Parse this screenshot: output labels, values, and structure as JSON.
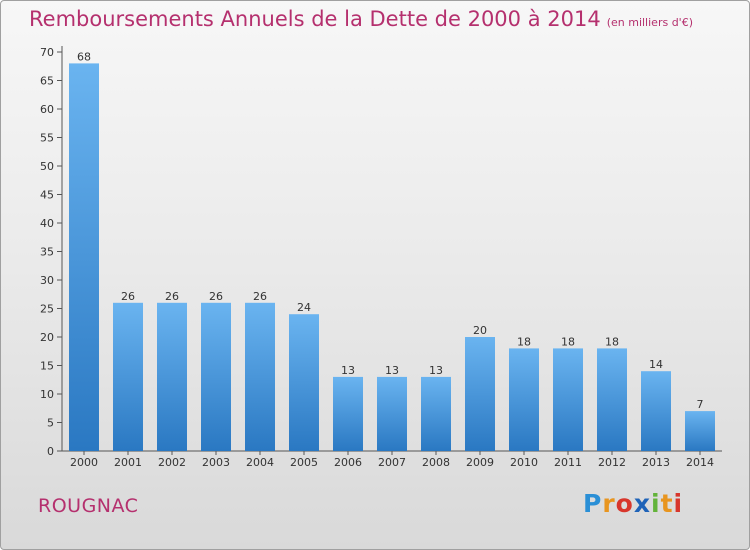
{
  "header": {
    "title": "Remboursements Annuels de la Dette de 2000 à 2014",
    "unit": "(en milliers d'€)"
  },
  "footer": {
    "commune": "ROUGNAC",
    "logo": "Proxiti"
  },
  "chart_data": {
    "type": "bar",
    "title": "Remboursements Annuels de la Dette de 2000 à 2014",
    "subtitle": "(en milliers d'€)",
    "categories": [
      "2000",
      "2001",
      "2002",
      "2003",
      "2004",
      "2005",
      "2006",
      "2007",
      "2008",
      "2009",
      "2010",
      "2011",
      "2012",
      "2013",
      "2014"
    ],
    "values": [
      68,
      26,
      26,
      26,
      26,
      24,
      13,
      13,
      13,
      20,
      18,
      18,
      18,
      14,
      7
    ],
    "ylim": [
      0,
      70
    ],
    "yticks": [
      0,
      5,
      10,
      15,
      20,
      25,
      30,
      35,
      40,
      45,
      50,
      55,
      60,
      65,
      70
    ],
    "xlabel": "",
    "ylabel": "",
    "grid": false,
    "colors": {
      "bar_top": "#6ab4f0",
      "bar_bottom": "#2a78c2",
      "title": "#b5306e"
    }
  }
}
